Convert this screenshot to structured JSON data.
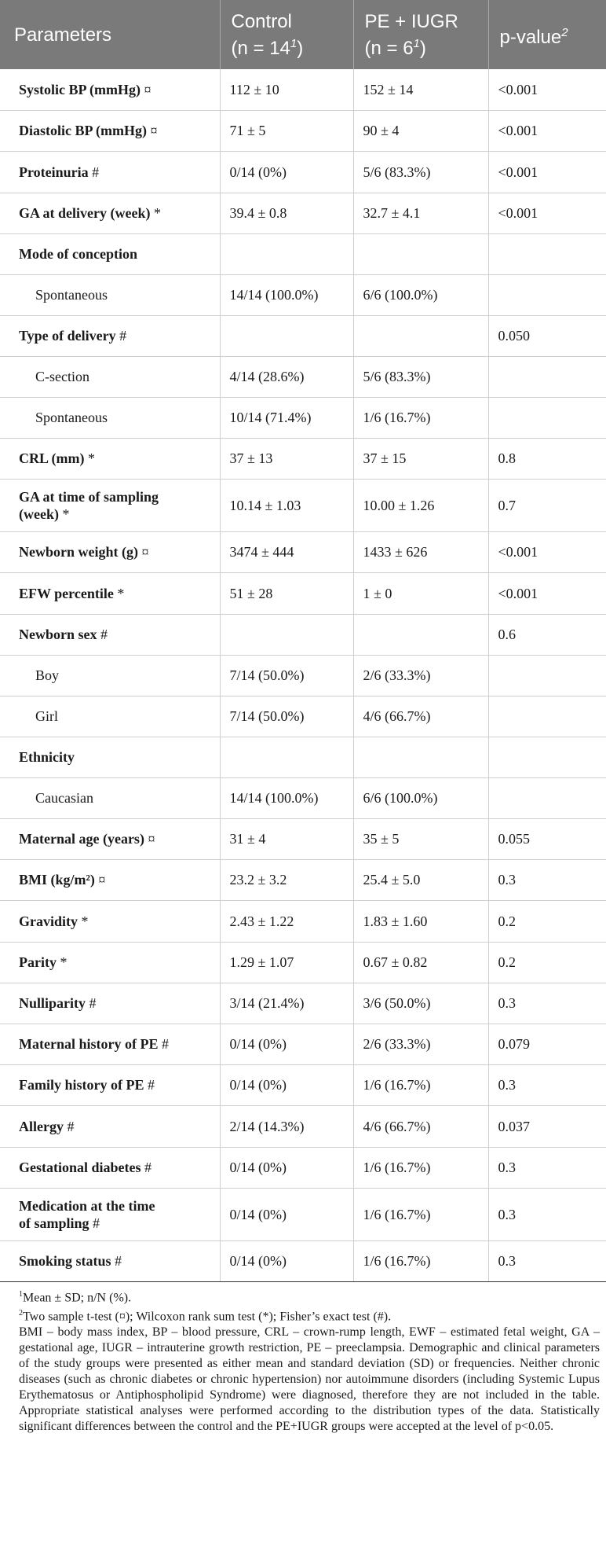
{
  "table": {
    "headers": [
      {
        "main": "Parameters",
        "sup": ""
      },
      {
        "main": "Control",
        "line2": "(n = 14",
        "sup": "1",
        "close": ")"
      },
      {
        "main": "PE + IUGR",
        "line2": "(n = 6",
        "sup": "1",
        "close": ")"
      },
      {
        "main": "p-value",
        "sup": "2"
      }
    ],
    "rows": [
      {
        "label": "Systolic BP (mmHg)",
        "tag": "¤",
        "control": "112 ± 10",
        "pe": "152 ± 14",
        "p": "<0.001"
      },
      {
        "label": "Diastolic BP (mmHg)",
        "tag": "¤",
        "control": "71 ± 5",
        "pe": "90 ± 4",
        "p": "<0.001"
      },
      {
        "label": "Proteinuria",
        "tag": "#",
        "control": "0/14 (0%)",
        "pe": "5/6 (83.3%)",
        "p": "<0.001"
      },
      {
        "label": "GA at delivery (week)",
        "tag": "*",
        "control": "39.4 ± 0.8",
        "pe": "32.7 ± 4.1",
        "p": "<0.001"
      },
      {
        "label": "Mode of conception",
        "tag": "",
        "control": "",
        "pe": "",
        "p": ""
      },
      {
        "label": "Spontaneous",
        "tag": "",
        "control": "14/14 (100.0%)",
        "pe": "6/6 (100.0%)",
        "p": ""
      },
      {
        "label": "Type of delivery",
        "tag": "#",
        "control": "",
        "pe": "",
        "p": "0.050"
      },
      {
        "label": "C-section",
        "tag": "",
        "control": "4/14 (28.6%)",
        "pe": "5/6 (83.3%)",
        "p": ""
      },
      {
        "label": "Spontaneous",
        "tag": "",
        "control": "10/14 (71.4%)",
        "pe": "1/6 (16.7%)",
        "p": ""
      },
      {
        "label": "CRL (mm)",
        "tag": "*",
        "control": "37 ± 13",
        "pe": "37 ± 15",
        "p": "0.8"
      },
      {
        "label": "GA at time of sampling",
        "label2": "(week)",
        "tag": "*",
        "control": "10.14 ± 1.03",
        "pe": "10.00 ± 1.26",
        "p": "0.7"
      },
      {
        "label": "Newborn weight (g)",
        "tag": "¤",
        "control": "3474 ± 444",
        "pe": "1433 ± 626",
        "p": "<0.001"
      },
      {
        "label": "EFW percentile",
        "tag": "*",
        "control": "51 ± 28",
        "pe": "1 ± 0",
        "p": "<0.001"
      },
      {
        "label": "Newborn sex",
        "tag": "#",
        "control": "",
        "pe": "",
        "p": "0.6"
      },
      {
        "label": "Boy",
        "tag": "",
        "control": "7/14 (50.0%)",
        "pe": "2/6 (33.3%)",
        "p": ""
      },
      {
        "label": "Girl",
        "tag": "",
        "control": "7/14 (50.0%)",
        "pe": "4/6 (66.7%)",
        "p": ""
      },
      {
        "label": "Ethnicity",
        "tag": "",
        "control": "",
        "pe": "",
        "p": ""
      },
      {
        "label": "Caucasian",
        "tag": "",
        "control": "14/14 (100.0%)",
        "pe": "6/6 (100.0%)",
        "p": ""
      },
      {
        "label": "Maternal age (years)",
        "tag": "¤",
        "control": "31 ± 4",
        "pe": "35 ± 5",
        "p": "0.055"
      },
      {
        "label": "BMI (kg/m²)",
        "tag": "¤",
        "control": "23.2 ± 3.2",
        "pe": "25.4 ± 5.0",
        "p": "0.3"
      },
      {
        "label": "Gravidity",
        "tag": "*",
        "control": "2.43 ± 1.22",
        "pe": "1.83 ± 1.60",
        "p": "0.2"
      },
      {
        "label": "Parity",
        "tag": "*",
        "control": "1.29 ± 1.07",
        "pe": "0.67 ± 0.82",
        "p": "0.2"
      },
      {
        "label": "Nulliparity",
        "tag": "#",
        "control": "3/14 (21.4%)",
        "pe": "3/6 (50.0%)",
        "p": "0.3"
      },
      {
        "label": "Maternal history of PE",
        "tag": "#",
        "control": "0/14 (0%)",
        "pe": "2/6 (33.3%)",
        "p": "0.079"
      },
      {
        "label": "Family history of PE",
        "tag": "#",
        "control": "0/14 (0%)",
        "pe": "1/6 (16.7%)",
        "p": "0.3"
      },
      {
        "label": "Allergy",
        "tag": "#",
        "control": "2/14 (14.3%)",
        "pe": "4/6 (66.7%)",
        "p": "0.037"
      },
      {
        "label": "Gestational diabetes",
        "tag": "#",
        "control": "0/14 (0%)",
        "pe": "1/6 (16.7%)",
        "p": "0.3"
      },
      {
        "label": "Medication at the time",
        "label2": "of sampling",
        "tag": "#",
        "control": "0/14 (0%)",
        "pe": "1/6 (16.7%)",
        "p": "0.3"
      },
      {
        "label": "Smoking status",
        "tag": "#",
        "control": "0/14 (0%)",
        "pe": "1/6 (16.7%)",
        "p": "0.3"
      }
    ]
  },
  "footnotes": {
    "note1_mark": "1",
    "note1": "Mean ± SD; n/N (%).",
    "note2_mark": "2",
    "note2": "Two sample t-test (¤); Wilcoxon rank sum test (*); Fisher’s exact test (#).",
    "body": "BMI – body mass index, BP – blood pressure, CRL – crown-rump length, EWF – estimated fetal weight, GA – gestational age, IUGR – intrauterine growth restriction, PE – preeclampsia. Demographic and clinical parameters of the study groups were presented as either mean and standard deviation (SD) or frequencies. Neither chronic diseases (such as chronic diabetes or chronic hypertension) nor autoimmune disorders (including Systemic Lupus Erythematosus or Antiphospholipid Syndrome) were diagnosed, therefore they are not included in the table. Appropriate statistical analyses were performed according to the distribution types of the data. Statistically significant differences between the control and the PE+IUGR groups were accepted at the level of p<0.05."
  }
}
